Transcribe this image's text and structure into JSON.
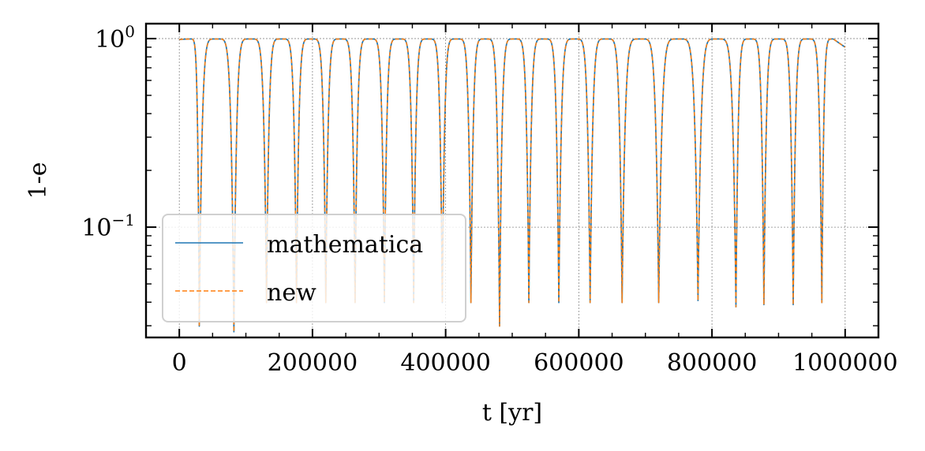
{
  "chart_data": {
    "type": "line",
    "title": "",
    "xlabel": "t [yr]",
    "ylabel": "1-e",
    "xlim": [
      -50000,
      1050000
    ],
    "ylim": [
      0.026,
      1.2
    ],
    "yscale": "log",
    "grid": true,
    "legend_placement": "lower-left",
    "x_ticks": [
      0,
      200000,
      400000,
      600000,
      800000,
      1000000
    ],
    "x_tick_labels": [
      "0",
      "200000",
      "400000",
      "600000",
      "800000",
      "1000000"
    ],
    "y_ticks": [
      {
        "value": 1,
        "base": "10",
        "exponent": "0"
      },
      {
        "value": 0.1,
        "base": "10",
        "exponent": "−1"
      }
    ],
    "dip_times": [
      30000,
      82000,
      131000,
      176000,
      220000,
      264000,
      308000,
      352000,
      395000,
      438000,
      481000,
      525000,
      570000,
      617000,
      665000,
      720000,
      779000,
      836000,
      878000,
      922000,
      965000
    ],
    "dip_minima": [
      0.03,
      0.028,
      0.04,
      0.04,
      0.04,
      0.04,
      0.04,
      0.04,
      0.04,
      0.04,
      0.03,
      0.04,
      0.04,
      0.04,
      0.04,
      0.04,
      0.041,
      0.038,
      0.039,
      0.039,
      0.04
    ],
    "series": [
      {
        "name": "mathematica",
        "color": "#1f77b4",
        "style": "solid"
      },
      {
        "name": "new",
        "color": "#ff7f0e",
        "style": "dashed"
      }
    ]
  }
}
